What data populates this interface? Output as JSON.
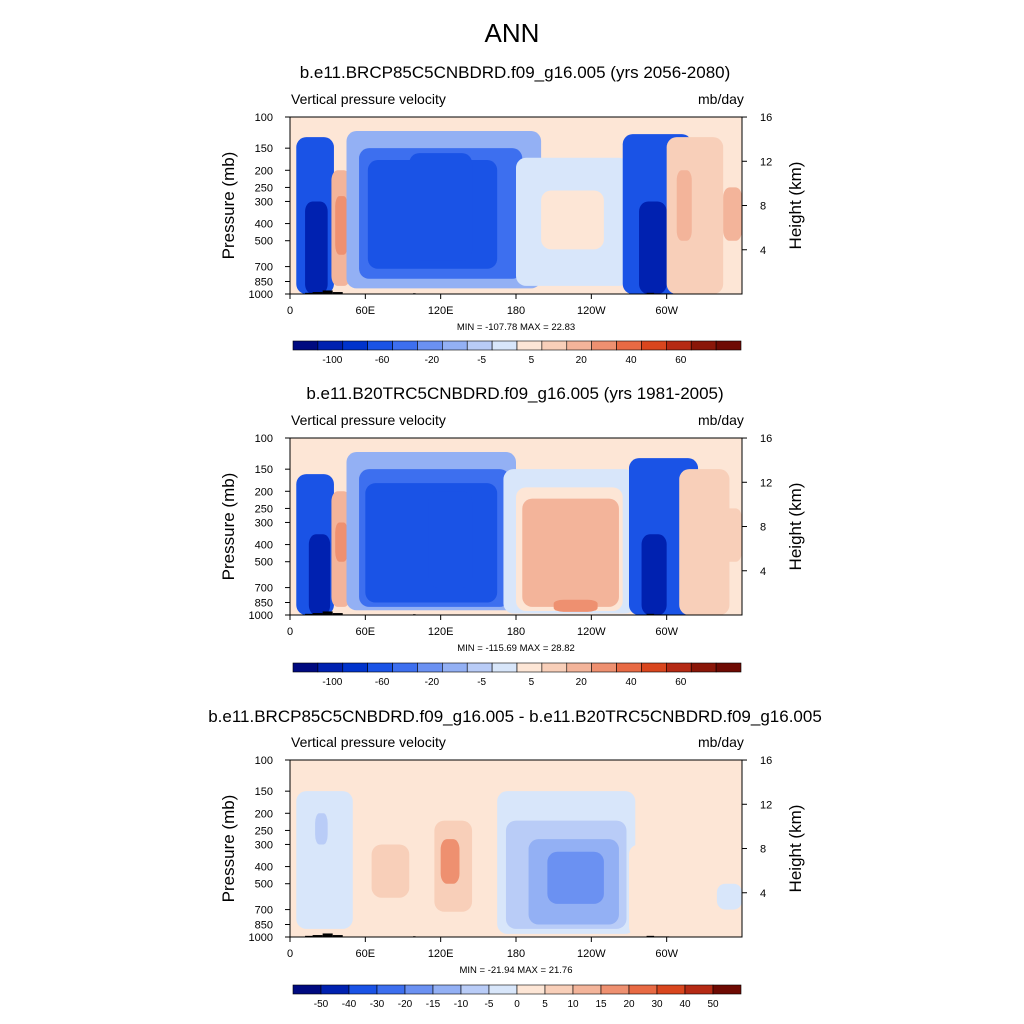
{
  "title": "ANN",
  "chart_data": [
    {
      "type": "heatmap",
      "title": "b.e11.BRCP85C5CNBDRD.f09_g16.005 (yrs 2056-2080)",
      "left_label": "Vertical pressure velocity",
      "units": "mb/day",
      "ylabel": "Pressure (mb)",
      "ylabel_right": "Height (km)",
      "xticks": [
        "0",
        "60E",
        "120E",
        "180",
        "120W",
        "60W"
      ],
      "xtick_lons": [
        0,
        60,
        120,
        180,
        240,
        300
      ],
      "xlim": [
        0,
        360
      ],
      "yticks": [
        "100",
        "150",
        "200",
        "250",
        "300",
        "400",
        "500",
        "700",
        "850",
        "1000"
      ],
      "ytick_values": [
        100,
        150,
        200,
        250,
        300,
        400,
        500,
        700,
        850,
        1000
      ],
      "ylim": [
        1000,
        100
      ],
      "right_ticks": [
        "4",
        "8",
        "12",
        "16"
      ],
      "right_tick_values": [
        4,
        8,
        12,
        16
      ],
      "minmax_text": "MIN = -107.78  MAX =  22.83",
      "min": -107.78,
      "max": 22.83,
      "colorbar_labels": [
        "-100",
        "-60",
        "-20",
        "-5",
        "5",
        "20",
        "40",
        "60"
      ],
      "features": [
        {
          "lon0": 5,
          "lon1": 35,
          "p0": 130,
          "p1": 1000,
          "value": -60
        },
        {
          "lon0": 12,
          "lon1": 30,
          "p0": 300,
          "p1": 1000,
          "value": -95
        },
        {
          "lon0": 33,
          "lon1": 48,
          "p0": 200,
          "p1": 900,
          "value": 20
        },
        {
          "lon0": 36,
          "lon1": 46,
          "p0": 280,
          "p1": 600,
          "value": 35
        },
        {
          "lon0": 45,
          "lon1": 200,
          "p0": 120,
          "p1": 930,
          "value": -8
        },
        {
          "lon0": 55,
          "lon1": 185,
          "p0": 150,
          "p1": 820,
          "value": -25
        },
        {
          "lon0": 62,
          "lon1": 165,
          "p0": 175,
          "p1": 720,
          "value": -45
        },
        {
          "lon0": 95,
          "lon1": 145,
          "p0": 160,
          "p1": 650,
          "value": -58
        },
        {
          "lon0": 180,
          "lon1": 270,
          "p0": 170,
          "p1": 900,
          "value": 4
        },
        {
          "lon0": 200,
          "lon1": 250,
          "p0": 260,
          "p1": 560,
          "value": 9
        },
        {
          "lon0": 265,
          "lon1": 320,
          "p0": 125,
          "p1": 1000,
          "value": -45
        },
        {
          "lon0": 278,
          "lon1": 300,
          "p0": 300,
          "p1": 1000,
          "value": -95
        },
        {
          "lon0": 300,
          "lon1": 345,
          "p0": 130,
          "p1": 1000,
          "value": 12
        },
        {
          "lon0": 308,
          "lon1": 320,
          "p0": 200,
          "p1": 500,
          "value": 25
        },
        {
          "lon0": 345,
          "lon1": 360,
          "p0": 250,
          "p1": 500,
          "value": 22
        }
      ],
      "topography": [
        {
          "lon0": 12,
          "lon1": 18,
          "p": 985
        },
        {
          "lon0": 18,
          "lon1": 26,
          "p": 975
        },
        {
          "lon0": 26,
          "lon1": 34,
          "p": 955
        },
        {
          "lon0": 34,
          "lon1": 42,
          "p": 975
        },
        {
          "lon0": 98,
          "lon1": 100,
          "p": 990
        },
        {
          "lon0": 284,
          "lon1": 290,
          "p": 985
        },
        {
          "lon0": 290,
          "lon1": 302,
          "p": 992
        }
      ]
    },
    {
      "type": "heatmap",
      "title": "b.e11.B20TRC5CNBDRD.f09_g16.005 (yrs 1981-2005)",
      "left_label": "Vertical pressure velocity",
      "units": "mb/day",
      "ylabel": "Pressure (mb)",
      "ylabel_right": "Height (km)",
      "xticks": [
        "0",
        "60E",
        "120E",
        "180",
        "120W",
        "60W"
      ],
      "xtick_lons": [
        0,
        60,
        120,
        180,
        240,
        300
      ],
      "xlim": [
        0,
        360
      ],
      "yticks": [
        "100",
        "150",
        "200",
        "250",
        "300",
        "400",
        "500",
        "700",
        "850",
        "1000"
      ],
      "ytick_values": [
        100,
        150,
        200,
        250,
        300,
        400,
        500,
        700,
        850,
        1000
      ],
      "ylim": [
        1000,
        100
      ],
      "right_ticks": [
        "4",
        "8",
        "12",
        "16"
      ],
      "right_tick_values": [
        4,
        8,
        12,
        16
      ],
      "minmax_text": "MIN = -115.69  MAX =  28.82",
      "min": -115.69,
      "max": 28.82,
      "colorbar_labels": [
        "-100",
        "-60",
        "-20",
        "-5",
        "5",
        "20",
        "40",
        "60"
      ],
      "features": [
        {
          "lon0": 5,
          "lon1": 35,
          "p0": 160,
          "p1": 1000,
          "value": -45
        },
        {
          "lon0": 15,
          "lon1": 32,
          "p0": 350,
          "p1": 1000,
          "value": -95
        },
        {
          "lon0": 33,
          "lon1": 48,
          "p0": 200,
          "p1": 900,
          "value": 20
        },
        {
          "lon0": 36,
          "lon1": 46,
          "p0": 300,
          "p1": 500,
          "value": 35
        },
        {
          "lon0": 45,
          "lon1": 180,
          "p0": 120,
          "p1": 940,
          "value": -8
        },
        {
          "lon0": 55,
          "lon1": 175,
          "p0": 150,
          "p1": 900,
          "value": -25
        },
        {
          "lon0": 60,
          "lon1": 165,
          "p0": 180,
          "p1": 850,
          "value": -45
        },
        {
          "lon0": 110,
          "lon1": 145,
          "p0": 200,
          "p1": 700,
          "value": -58
        },
        {
          "lon0": 170,
          "lon1": 275,
          "p0": 150,
          "p1": 980,
          "value": 4
        },
        {
          "lon0": 180,
          "lon1": 265,
          "p0": 190,
          "p1": 950,
          "value": 9
        },
        {
          "lon0": 185,
          "lon1": 262,
          "p0": 220,
          "p1": 900,
          "value": 20
        },
        {
          "lon0": 210,
          "lon1": 245,
          "p0": 820,
          "p1": 960,
          "value": 30
        },
        {
          "lon0": 270,
          "lon1": 325,
          "p0": 130,
          "p1": 1000,
          "value": -45
        },
        {
          "lon0": 280,
          "lon1": 300,
          "p0": 350,
          "p1": 1000,
          "value": -95
        },
        {
          "lon0": 310,
          "lon1": 350,
          "p0": 150,
          "p1": 1000,
          "value": 12
        },
        {
          "lon0": 345,
          "lon1": 360,
          "p0": 250,
          "p1": 500,
          "value": 18
        }
      ],
      "topography": [
        {
          "lon0": 12,
          "lon1": 18,
          "p": 985
        },
        {
          "lon0": 18,
          "lon1": 26,
          "p": 975
        },
        {
          "lon0": 26,
          "lon1": 34,
          "p": 955
        },
        {
          "lon0": 34,
          "lon1": 42,
          "p": 975
        },
        {
          "lon0": 98,
          "lon1": 100,
          "p": 990
        },
        {
          "lon0": 284,
          "lon1": 290,
          "p": 985
        },
        {
          "lon0": 290,
          "lon1": 302,
          "p": 992
        }
      ]
    },
    {
      "type": "heatmap",
      "title": "b.e11.BRCP85C5CNBDRD.f09_g16.005 - b.e11.B20TRC5CNBDRD.f09_g16.005",
      "left_label": "Vertical pressure velocity",
      "units": "mb/day",
      "ylabel": "Pressure (mb)",
      "ylabel_right": "Height (km)",
      "xticks": [
        "0",
        "60E",
        "120E",
        "180",
        "120W",
        "60W"
      ],
      "xtick_lons": [
        0,
        60,
        120,
        180,
        240,
        300
      ],
      "xlim": [
        0,
        360
      ],
      "yticks": [
        "100",
        "150",
        "200",
        "250",
        "300",
        "400",
        "500",
        "700",
        "850",
        "1000"
      ],
      "ytick_values": [
        100,
        150,
        200,
        250,
        300,
        400,
        500,
        700,
        850,
        1000
      ],
      "ylim": [
        1000,
        100
      ],
      "right_ticks": [
        "4",
        "8",
        "12",
        "16"
      ],
      "right_tick_values": [
        4,
        8,
        12,
        16
      ],
      "minmax_text": "MIN = -21.94  MAX =  21.76",
      "min": -21.94,
      "max": 21.76,
      "colorbar_labels": [
        "-50",
        "-40",
        "-30",
        "-20",
        "-15",
        "-10",
        "-5",
        "0",
        "5",
        "10",
        "15",
        "20",
        "30",
        "40",
        "50"
      ],
      "features": [
        {
          "lon0": 5,
          "lon1": 50,
          "p0": 150,
          "p1": 900,
          "value": -3
        },
        {
          "lon0": 20,
          "lon1": 30,
          "p0": 200,
          "p1": 300,
          "value": -8
        },
        {
          "lon0": 60,
          "lon1": 105,
          "p0": 230,
          "p1": 760,
          "value": 3
        },
        {
          "lon0": 65,
          "lon1": 95,
          "p0": 300,
          "p1": 600,
          "value": 7
        },
        {
          "lon0": 110,
          "lon1": 160,
          "p0": 150,
          "p1": 820,
          "value": 3
        },
        {
          "lon0": 115,
          "lon1": 145,
          "p0": 220,
          "p1": 720,
          "value": 8
        },
        {
          "lon0": 120,
          "lon1": 135,
          "p0": 280,
          "p1": 500,
          "value": 18
        },
        {
          "lon0": 165,
          "lon1": 275,
          "p0": 150,
          "p1": 960,
          "value": -3
        },
        {
          "lon0": 172,
          "lon1": 268,
          "p0": 220,
          "p1": 900,
          "value": -8
        },
        {
          "lon0": 190,
          "lon1": 262,
          "p0": 280,
          "p1": 850,
          "value": -13
        },
        {
          "lon0": 205,
          "lon1": 250,
          "p0": 330,
          "p1": 650,
          "value": -18
        },
        {
          "lon0": 270,
          "lon1": 330,
          "p0": 300,
          "p1": 1000,
          "value": 3
        },
        {
          "lon0": 340,
          "lon1": 360,
          "p0": 500,
          "p1": 700,
          "value": -3
        }
      ],
      "topography": [
        {
          "lon0": 12,
          "lon1": 18,
          "p": 985
        },
        {
          "lon0": 18,
          "lon1": 26,
          "p": 975
        },
        {
          "lon0": 26,
          "lon1": 34,
          "p": 955
        },
        {
          "lon0": 34,
          "lon1": 42,
          "p": 975
        },
        {
          "lon0": 98,
          "lon1": 100,
          "p": 990
        },
        {
          "lon0": 284,
          "lon1": 290,
          "p": 985
        },
        {
          "lon0": 290,
          "lon1": 302,
          "p": 992
        }
      ]
    }
  ],
  "colors": {
    "cmap_main": [
      "#000a80",
      "#0021b0",
      "#0033cc",
      "#1a53e6",
      "#3d6fef",
      "#6b91f2",
      "#93b0f4",
      "#b9ccf7",
      "#d8e6fa",
      "#fde6d6",
      "#f8cfb9",
      "#f3b49a",
      "#ee9070",
      "#e86a44",
      "#d9461e",
      "#b52a14",
      "#8a1608",
      "#6e0a03"
    ],
    "cmap_diff": [
      "#000a80",
      "#0021b0",
      "#1a53e6",
      "#3d6fef",
      "#6b91f2",
      "#93b0f4",
      "#b9ccf7",
      "#d8e6fa",
      "#fde6d6",
      "#f8cfb9",
      "#f3b49a",
      "#ee9070",
      "#e86a44",
      "#d9461e",
      "#b52a14",
      "#6e0a03"
    ],
    "topography": "#000000",
    "frame": "#000000"
  }
}
